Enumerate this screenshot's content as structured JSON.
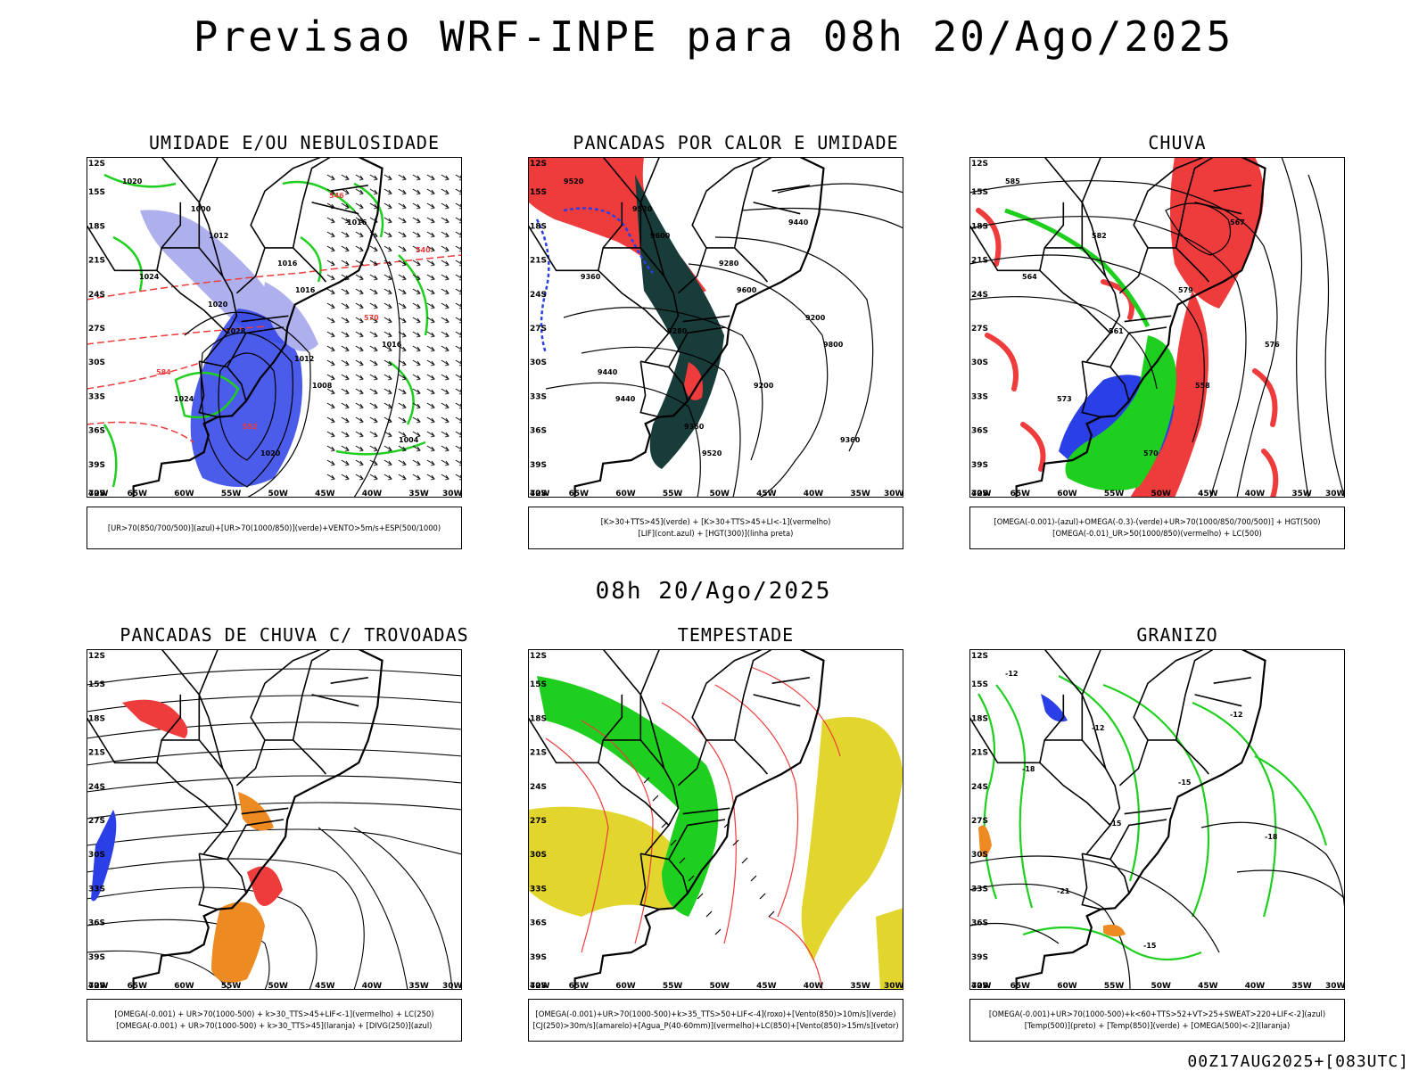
{
  "title": "Previsao WRF-INPE  para 08h 20/Ago/2025",
  "middle_title": "08h 20/Ago/2025",
  "footer": "00Z17AUG2025+[083UTC]",
  "axes": {
    "lat_labels": [
      "12S",
      "15S",
      "18S",
      "21S",
      "24S",
      "27S",
      "30S",
      "33S",
      "36S",
      "39S",
      "42S"
    ],
    "lon_labels": [
      "70W",
      "65W",
      "60W",
      "55W",
      "50W",
      "45W",
      "40W",
      "35W",
      "30W"
    ]
  },
  "colors": {
    "blue": "#2b3fe6",
    "light_blue": "#aeb0ee",
    "green": "#1fcf1f",
    "red": "#ee3b3b",
    "orange": "#ee8a22",
    "yellow": "#e2d52e",
    "dark_teal": "#173c3a"
  },
  "panels": [
    {
      "title": "UMIDADE E/OU NEBULOSIDADE",
      "legend": [
        "[UR>70(850/700/500)](azul)+[UR>70(1000/850)](verde)+VENTO>5m/s+ESP(500/1000)"
      ],
      "labels": [
        "1020",
        "1012",
        "1016",
        "1016",
        "1024",
        "1020",
        "1016",
        "1024",
        "1028",
        "1008",
        "1004",
        "1000",
        "1016",
        "570",
        "584",
        "552",
        "546",
        "540",
        "1020",
        "1012"
      ]
    },
    {
      "title": "PANCADAS POR CALOR E UMIDADE",
      "legend": [
        "[K>30+TTS>45](verde) + [K>30+TTS>45+LI<-1](vermelho)",
        "[LIF](cont.azul) + [HGT(300)](linha preta)"
      ],
      "labels": [
        "9520",
        "9600",
        "9600",
        "9800",
        "9440",
        "9520",
        "9440",
        "9360",
        "9280",
        "9200",
        "9360",
        "9520",
        "9280",
        "9200",
        "9440",
        "9360"
      ]
    },
    {
      "title": "CHUVA",
      "legend": [
        "[OMEGA(-0.001)-(azul)+OMEGA(-0.3)-(verde)+UR>70(1000/850/700/500)] + HGT(500)",
        "[OMEGA(-0.01)_UR>50(1000/850)(vermelho) + LC(500)"
      ],
      "labels": [
        "585",
        "582",
        "579",
        "576",
        "573",
        "570",
        "567",
        "564",
        "561",
        "558"
      ]
    },
    {
      "title": "PANCADAS DE CHUVA C/ TROVOADAS",
      "legend": [
        "[OMEGA(-0.001) + UR>70(1000-500) + k>30_TTS>45+LIF<-1](vermelho) + LC(250)",
        "[OMEGA(-0.001) + UR>70(1000-500) + k>30_TTS>45](laranja) + [DIVG(250)](azul)"
      ],
      "labels": []
    },
    {
      "title": "TEMPESTADE",
      "legend": [
        "[OMEGA(-0.001)+UR>70(1000-500)+k>35_TTS>50+LIF<-4](roxo)+[Vento(850)>10m/s](verde)",
        "[CJ(250)>30m/s](amarelo)+[Agua_P(40-60mm)](vermelho)+LC(850)+[Vento(850)>15m/s](vetor)"
      ],
      "labels": []
    },
    {
      "title": "GRANIZO",
      "legend": [
        "[OMEGA(-0.001)+UR>70(1000-500)+k<60+TTS>52+VT>25+SWEAT>220+LIF<-2](azul)",
        "[Temp(500)](preto) + [Temp(850)](verde) + [OMEGA(500)<-2](laranja)"
      ],
      "labels": [
        "-12",
        "-12",
        "-15",
        "-18",
        "-21",
        "-15",
        "-12",
        "-18",
        "-15"
      ]
    }
  ]
}
